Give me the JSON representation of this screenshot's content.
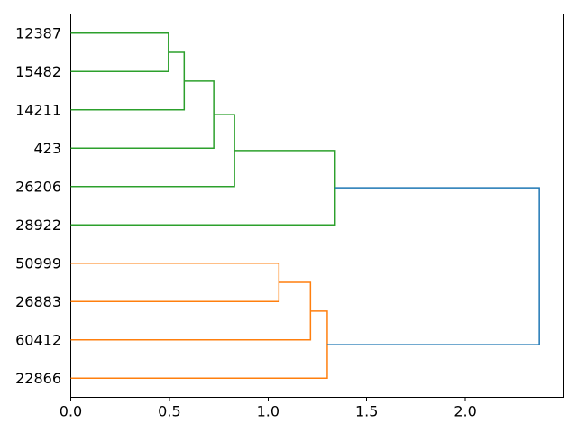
{
  "chart_data": {
    "type": "dendrogram",
    "title": "",
    "xlabel": "",
    "ylabel": "",
    "orientation": "leaves-left-root-right",
    "grid": false,
    "legend": null,
    "leaves": [
      "12387",
      "15482",
      "14211",
      "423",
      "26206",
      "28922",
      "50999",
      "26883",
      "60412",
      "22866"
    ],
    "merges": [
      {
        "a": "leaf:0",
        "b": "leaf:1",
        "height": 0.495,
        "color": "green"
      },
      {
        "a": "merge:0",
        "b": "leaf:2",
        "height": 0.575,
        "color": "green"
      },
      {
        "a": "merge:1",
        "b": "leaf:3",
        "height": 0.725,
        "color": "green"
      },
      {
        "a": "merge:2",
        "b": "leaf:4",
        "height": 0.83,
        "color": "green"
      },
      {
        "a": "merge:3",
        "b": "leaf:5",
        "height": 1.34,
        "color": "green"
      },
      {
        "a": "leaf:6",
        "b": "leaf:7",
        "height": 1.055,
        "color": "orange"
      },
      {
        "a": "merge:5",
        "b": "leaf:8",
        "height": 1.215,
        "color": "orange"
      },
      {
        "a": "merge:6",
        "b": "leaf:9",
        "height": 1.3,
        "color": "orange"
      },
      {
        "a": "merge:4",
        "b": "merge:7",
        "height": 2.375,
        "color": "blue"
      }
    ],
    "clusters": {
      "green": [
        "12387",
        "15482",
        "14211",
        "423",
        "26206",
        "28922"
      ],
      "orange": [
        "50999",
        "26883",
        "60412",
        "22866"
      ]
    },
    "x_ticks": [
      {
        "label": "0.0",
        "value": 0.0
      },
      {
        "label": "0.5",
        "value": 0.5
      },
      {
        "label": "1.0",
        "value": 1.0
      },
      {
        "label": "1.5",
        "value": 1.5
      },
      {
        "label": "2.0",
        "value": 2.0
      }
    ],
    "xlim": [
      0.0,
      2.5
    ],
    "root_distance": 2.375,
    "colors": {
      "green": "#2ca02c",
      "orange": "#ff7f0e",
      "blue": "#1f77b4",
      "axis": "#000000",
      "background": "#ffffff"
    },
    "line_width": 1.5
  }
}
